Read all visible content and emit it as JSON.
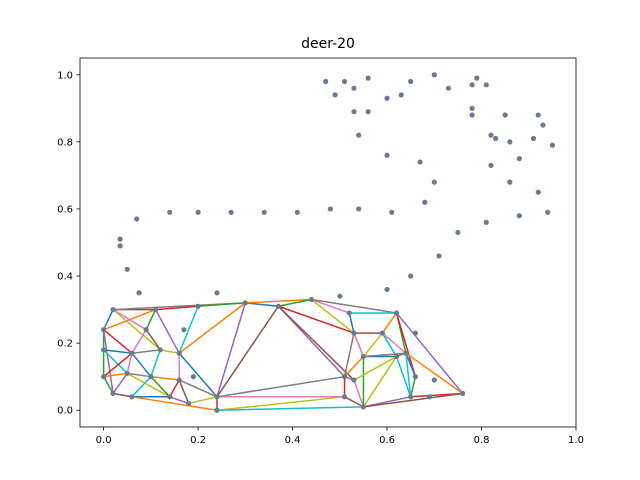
{
  "chart_data": {
    "type": "scatter",
    "title": "deer-20",
    "xlabel": "",
    "ylabel": "",
    "xlim": [
      -0.05,
      1.0
    ],
    "ylim": [
      -0.05,
      1.05
    ],
    "xticks": [
      "0.0",
      "0.2",
      "0.4",
      "0.6",
      "0.8",
      "1.0"
    ],
    "yticks": [
      "0.0",
      "0.2",
      "0.4",
      "0.6",
      "0.8",
      "1.0"
    ],
    "xtick_values": [
      0.0,
      0.2,
      0.4,
      0.6,
      0.8,
      1.0
    ],
    "ytick_values": [
      0.0,
      0.2,
      0.4,
      0.6,
      0.8,
      1.0
    ],
    "grid": false,
    "point_color": "#6b7a8f",
    "points": [
      [
        0.47,
        0.98
      ],
      [
        0.49,
        0.94
      ],
      [
        0.51,
        0.98
      ],
      [
        0.53,
        0.96
      ],
      [
        0.56,
        0.99
      ],
      [
        0.6,
        0.93
      ],
      [
        0.63,
        0.94
      ],
      [
        0.65,
        0.98
      ],
      [
        0.7,
        1.0
      ],
      [
        0.73,
        0.96
      ],
      [
        0.78,
        0.97
      ],
      [
        0.79,
        0.99
      ],
      [
        0.81,
        0.97
      ],
      [
        0.78,
        0.9
      ],
      [
        0.78,
        0.88
      ],
      [
        0.85,
        0.88
      ],
      [
        0.82,
        0.82
      ],
      [
        0.83,
        0.81
      ],
      [
        0.86,
        0.8
      ],
      [
        0.92,
        0.88
      ],
      [
        0.93,
        0.85
      ],
      [
        0.91,
        0.81
      ],
      [
        0.95,
        0.79
      ],
      [
        0.53,
        0.89
      ],
      [
        0.56,
        0.89
      ],
      [
        0.54,
        0.82
      ],
      [
        0.6,
        0.76
      ],
      [
        0.67,
        0.74
      ],
      [
        0.88,
        0.75
      ],
      [
        0.82,
        0.73
      ],
      [
        0.7,
        0.68
      ],
      [
        0.86,
        0.68
      ],
      [
        0.92,
        0.65
      ],
      [
        0.68,
        0.62
      ],
      [
        0.94,
        0.59
      ],
      [
        0.88,
        0.58
      ],
      [
        0.81,
        0.56
      ],
      [
        0.75,
        0.53
      ],
      [
        0.71,
        0.46
      ],
      [
        0.65,
        0.4
      ],
      [
        0.6,
        0.36
      ],
      [
        0.61,
        0.59
      ],
      [
        0.54,
        0.6
      ],
      [
        0.48,
        0.6
      ],
      [
        0.41,
        0.59
      ],
      [
        0.34,
        0.59
      ],
      [
        0.27,
        0.59
      ],
      [
        0.2,
        0.59
      ],
      [
        0.14,
        0.59
      ],
      [
        0.07,
        0.57
      ],
      [
        0.035,
        0.51
      ],
      [
        0.035,
        0.49
      ],
      [
        0.05,
        0.42
      ],
      [
        0.075,
        0.35
      ],
      [
        0.24,
        0.35
      ],
      [
        0.5,
        0.34
      ],
      [
        0.17,
        0.24
      ],
      [
        0.19,
        0.1
      ],
      [
        0.66,
        0.23
      ],
      [
        0.7,
        0.09
      ],
      [
        0.69,
        0.04
      ],
      [
        0.0,
        0.24
      ],
      [
        0.02,
        0.3
      ],
      [
        0.0,
        0.18
      ],
      [
        0.0,
        0.1
      ],
      [
        0.02,
        0.05
      ],
      [
        0.05,
        0.11
      ],
      [
        0.06,
        0.04
      ],
      [
        0.11,
        0.3
      ],
      [
        0.09,
        0.24
      ],
      [
        0.12,
        0.18
      ],
      [
        0.06,
        0.17
      ],
      [
        0.1,
        0.1
      ],
      [
        0.14,
        0.04
      ],
      [
        0.16,
        0.09
      ],
      [
        0.18,
        0.02
      ],
      [
        0.16,
        0.17
      ],
      [
        0.2,
        0.31
      ],
      [
        0.24,
        0.04
      ],
      [
        0.24,
        0.0
      ],
      [
        0.3,
        0.32
      ],
      [
        0.37,
        0.31
      ],
      [
        0.44,
        0.33
      ],
      [
        0.52,
        0.29
      ],
      [
        0.62,
        0.29
      ],
      [
        0.53,
        0.23
      ],
      [
        0.59,
        0.23
      ],
      [
        0.55,
        0.16
      ],
      [
        0.51,
        0.1
      ],
      [
        0.51,
        0.04
      ],
      [
        0.55,
        0.01
      ],
      [
        0.62,
        0.16
      ],
      [
        0.64,
        0.17
      ],
      [
        0.66,
        0.1
      ],
      [
        0.65,
        0.04
      ],
      [
        0.76,
        0.05
      ],
      [
        0.53,
        0.09
      ]
    ],
    "segment_colors": [
      "#1f77b4",
      "#ff7f0e",
      "#2ca02c",
      "#d62728",
      "#9467bd",
      "#8c564b",
      "#e377c2",
      "#7f7f7f",
      "#bcbd22",
      "#17becf"
    ],
    "segments": [
      [
        [
          0.0,
          0.24
        ],
        [
          0.02,
          0.3
        ]
      ],
      [
        [
          0.0,
          0.24
        ],
        [
          0.11,
          0.3
        ]
      ],
      [
        [
          0.0,
          0.24
        ],
        [
          0.0,
          0.1
        ]
      ],
      [
        [
          0.0,
          0.24
        ],
        [
          0.06,
          0.17
        ]
      ],
      [
        [
          0.0,
          0.24
        ],
        [
          0.02,
          0.05
        ]
      ],
      [
        [
          0.02,
          0.3
        ],
        [
          0.11,
          0.3
        ]
      ],
      [
        [
          0.02,
          0.3
        ],
        [
          0.09,
          0.24
        ]
      ],
      [
        [
          0.02,
          0.3
        ],
        [
          0.3,
          0.32
        ]
      ],
      [
        [
          0.02,
          0.3
        ],
        [
          0.12,
          0.18
        ]
      ],
      [
        [
          0.0,
          0.18
        ],
        [
          0.05,
          0.11
        ]
      ],
      [
        [
          0.0,
          0.18
        ],
        [
          0.06,
          0.17
        ]
      ],
      [
        [
          0.0,
          0.1
        ],
        [
          0.05,
          0.11
        ]
      ],
      [
        [
          0.0,
          0.1
        ],
        [
          0.02,
          0.05
        ]
      ],
      [
        [
          0.0,
          0.1
        ],
        [
          0.06,
          0.17
        ]
      ],
      [
        [
          0.02,
          0.05
        ],
        [
          0.05,
          0.11
        ]
      ],
      [
        [
          0.02,
          0.05
        ],
        [
          0.06,
          0.04
        ]
      ],
      [
        [
          0.05,
          0.11
        ],
        [
          0.06,
          0.17
        ]
      ],
      [
        [
          0.05,
          0.11
        ],
        [
          0.1,
          0.1
        ]
      ],
      [
        [
          0.05,
          0.11
        ],
        [
          0.14,
          0.04
        ]
      ],
      [
        [
          0.06,
          0.04
        ],
        [
          0.1,
          0.1
        ]
      ],
      [
        [
          0.06,
          0.04
        ],
        [
          0.14,
          0.04
        ]
      ],
      [
        [
          0.06,
          0.04
        ],
        [
          0.24,
          0.0
        ]
      ],
      [
        [
          0.11,
          0.3
        ],
        [
          0.09,
          0.24
        ]
      ],
      [
        [
          0.11,
          0.3
        ],
        [
          0.2,
          0.31
        ]
      ],
      [
        [
          0.11,
          0.3
        ],
        [
          0.16,
          0.17
        ]
      ],
      [
        [
          0.09,
          0.24
        ],
        [
          0.12,
          0.18
        ]
      ],
      [
        [
          0.09,
          0.24
        ],
        [
          0.06,
          0.17
        ]
      ],
      [
        [
          0.12,
          0.18
        ],
        [
          0.06,
          0.17
        ]
      ],
      [
        [
          0.12,
          0.18
        ],
        [
          0.16,
          0.17
        ]
      ],
      [
        [
          0.12,
          0.18
        ],
        [
          0.1,
          0.1
        ]
      ],
      [
        [
          0.06,
          0.17
        ],
        [
          0.1,
          0.1
        ]
      ],
      [
        [
          0.1,
          0.1
        ],
        [
          0.16,
          0.09
        ]
      ],
      [
        [
          0.1,
          0.1
        ],
        [
          0.14,
          0.04
        ]
      ],
      [
        [
          0.14,
          0.04
        ],
        [
          0.16,
          0.09
        ]
      ],
      [
        [
          0.14,
          0.04
        ],
        [
          0.18,
          0.02
        ]
      ],
      [
        [
          0.16,
          0.09
        ],
        [
          0.18,
          0.02
        ]
      ],
      [
        [
          0.16,
          0.09
        ],
        [
          0.16,
          0.17
        ]
      ],
      [
        [
          0.16,
          0.09
        ],
        [
          0.24,
          0.04
        ]
      ],
      [
        [
          0.18,
          0.02
        ],
        [
          0.24,
          0.04
        ]
      ],
      [
        [
          0.16,
          0.17
        ],
        [
          0.2,
          0.31
        ]
      ],
      [
        [
          0.16,
          0.17
        ],
        [
          0.24,
          0.04
        ]
      ],
      [
        [
          0.16,
          0.17
        ],
        [
          0.3,
          0.32
        ]
      ],
      [
        [
          0.2,
          0.31
        ],
        [
          0.3,
          0.32
        ]
      ],
      [
        [
          0.24,
          0.04
        ],
        [
          0.24,
          0.0
        ]
      ],
      [
        [
          0.24,
          0.04
        ],
        [
          0.3,
          0.32
        ]
      ],
      [
        [
          0.24,
          0.04
        ],
        [
          0.37,
          0.31
        ]
      ],
      [
        [
          0.24,
          0.04
        ],
        [
          0.51,
          0.04
        ]
      ],
      [
        [
          0.24,
          0.04
        ],
        [
          0.51,
          0.1
        ]
      ],
      [
        [
          0.24,
          0.0
        ],
        [
          0.51,
          0.04
        ]
      ],
      [
        [
          0.24,
          0.0
        ],
        [
          0.55,
          0.01
        ]
      ],
      [
        [
          0.3,
          0.32
        ],
        [
          0.37,
          0.31
        ]
      ],
      [
        [
          0.3,
          0.32
        ],
        [
          0.44,
          0.33
        ]
      ],
      [
        [
          0.37,
          0.31
        ],
        [
          0.44,
          0.33
        ]
      ],
      [
        [
          0.37,
          0.31
        ],
        [
          0.53,
          0.23
        ]
      ],
      [
        [
          0.37,
          0.31
        ],
        [
          0.51,
          0.1
        ]
      ],
      [
        [
          0.37,
          0.31
        ],
        [
          0.53,
          0.09
        ]
      ],
      [
        [
          0.44,
          0.33
        ],
        [
          0.52,
          0.29
        ]
      ],
      [
        [
          0.44,
          0.33
        ],
        [
          0.62,
          0.29
        ]
      ],
      [
        [
          0.44,
          0.33
        ],
        [
          0.53,
          0.23
        ]
      ],
      [
        [
          0.52,
          0.29
        ],
        [
          0.62,
          0.29
        ]
      ],
      [
        [
          0.52,
          0.29
        ],
        [
          0.53,
          0.23
        ]
      ],
      [
        [
          0.62,
          0.29
        ],
        [
          0.59,
          0.23
        ]
      ],
      [
        [
          0.62,
          0.29
        ],
        [
          0.64,
          0.17
        ]
      ],
      [
        [
          0.62,
          0.29
        ],
        [
          0.66,
          0.1
        ]
      ],
      [
        [
          0.62,
          0.29
        ],
        [
          0.76,
          0.05
        ]
      ],
      [
        [
          0.53,
          0.23
        ],
        [
          0.59,
          0.23
        ]
      ],
      [
        [
          0.53,
          0.23
        ],
        [
          0.55,
          0.16
        ]
      ],
      [
        [
          0.53,
          0.23
        ],
        [
          0.51,
          0.1
        ]
      ],
      [
        [
          0.59,
          0.23
        ],
        [
          0.55,
          0.16
        ]
      ],
      [
        [
          0.59,
          0.23
        ],
        [
          0.62,
          0.16
        ]
      ],
      [
        [
          0.55,
          0.16
        ],
        [
          0.62,
          0.16
        ]
      ],
      [
        [
          0.55,
          0.16
        ],
        [
          0.51,
          0.1
        ]
      ],
      [
        [
          0.55,
          0.16
        ],
        [
          0.55,
          0.01
        ]
      ],
      [
        [
          0.51,
          0.1
        ],
        [
          0.51,
          0.04
        ]
      ],
      [
        [
          0.51,
          0.1
        ],
        [
          0.53,
          0.09
        ]
      ],
      [
        [
          0.51,
          0.04
        ],
        [
          0.55,
          0.01
        ]
      ],
      [
        [
          0.53,
          0.09
        ],
        [
          0.55,
          0.01
        ]
      ],
      [
        [
          0.62,
          0.16
        ],
        [
          0.64,
          0.17
        ]
      ],
      [
        [
          0.62,
          0.16
        ],
        [
          0.55,
          0.01
        ]
      ],
      [
        [
          0.62,
          0.16
        ],
        [
          0.65,
          0.04
        ]
      ],
      [
        [
          0.64,
          0.17
        ],
        [
          0.66,
          0.1
        ]
      ],
      [
        [
          0.64,
          0.17
        ],
        [
          0.76,
          0.05
        ]
      ],
      [
        [
          0.66,
          0.1
        ],
        [
          0.65,
          0.04
        ]
      ],
      [
        [
          0.65,
          0.04
        ],
        [
          0.76,
          0.05
        ]
      ],
      [
        [
          0.55,
          0.01
        ],
        [
          0.65,
          0.04
        ]
      ],
      [
        [
          0.55,
          0.01
        ],
        [
          0.76,
          0.05
        ]
      ],
      [
        [
          0.59,
          0.23
        ],
        [
          0.64,
          0.17
        ]
      ],
      [
        [
          0.55,
          0.16
        ],
        [
          0.64,
          0.17
        ]
      ],
      [
        [
          0.53,
          0.09
        ],
        [
          0.62,
          0.16
        ]
      ],
      [
        [
          0.65,
          0.04
        ],
        [
          0.64,
          0.17
        ]
      ]
    ]
  }
}
